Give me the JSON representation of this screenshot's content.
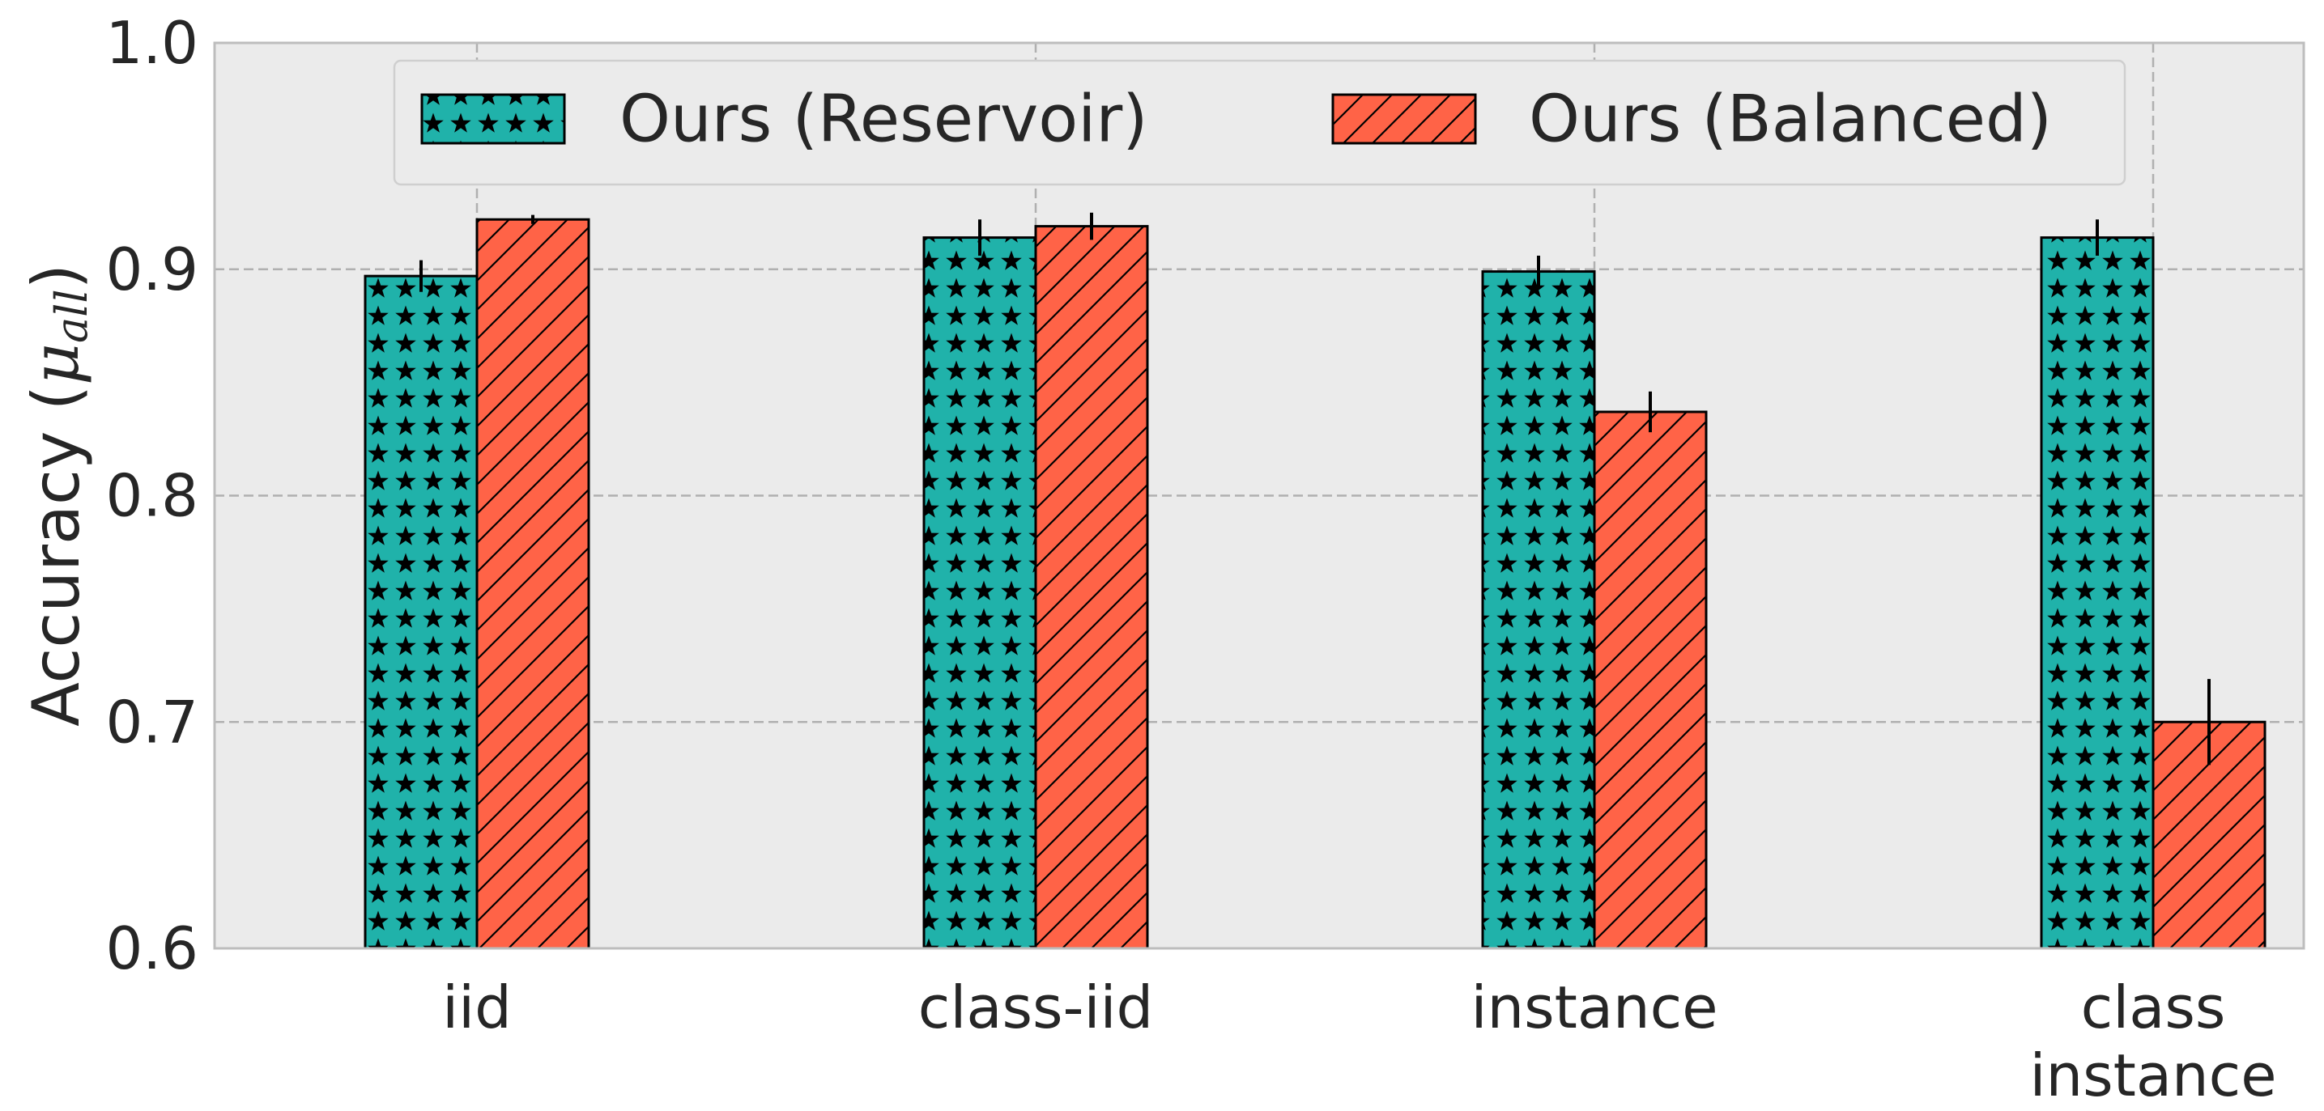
{
  "chart_data": {
    "type": "bar",
    "categories": [
      "iid",
      "class-iid",
      "instance",
      "class\ninstance"
    ],
    "series": [
      {
        "name": "Ours (Reservoir)",
        "values": [
          0.897,
          0.914,
          0.899,
          0.914
        ],
        "errors": [
          0.007,
          0.008,
          0.007,
          0.008
        ],
        "color": "#20B2AA",
        "pattern": "stars"
      },
      {
        "name": "Ours (Balanced)",
        "values": [
          0.922,
          0.919,
          0.837,
          0.7
        ],
        "errors": [
          0.002,
          0.006,
          0.009,
          0.019
        ],
        "color": "#FF6347",
        "pattern": "diagonal-hatch"
      }
    ],
    "xlabel": "",
    "ylabel": "Accuracy (",
    "ylabel_math": "μ",
    "ylabel_math_sub": "all",
    "ylabel_close": ")",
    "ylim": [
      0.6,
      1.0
    ],
    "yticks": [
      0.6,
      0.7,
      0.8,
      0.9,
      1.0
    ],
    "ytick_labels": [
      "0.6",
      "0.7",
      "0.8",
      "0.9",
      "1.0"
    ],
    "grid": true,
    "grid_style": "dashed",
    "legend_position": "top-center",
    "background": "#EBEBEB",
    "frame_color": "#BDBDBD"
  }
}
